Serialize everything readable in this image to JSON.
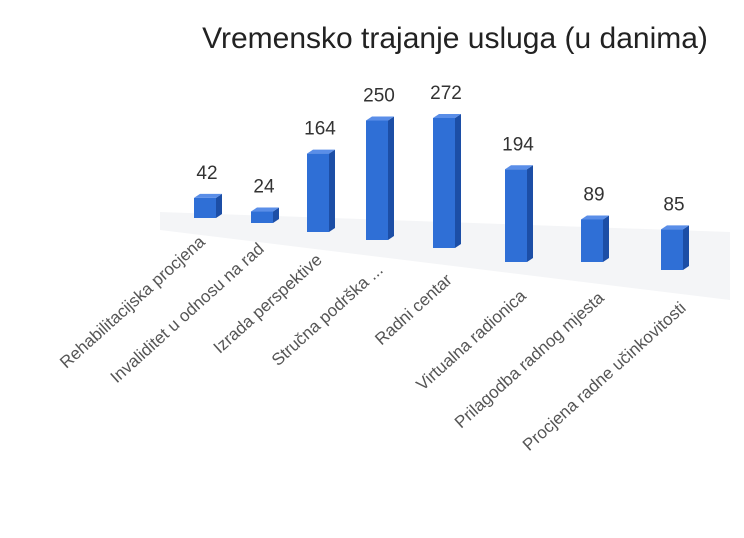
{
  "chart_data": {
    "type": "bar3d",
    "title": "Vremensko trajanje usluga (u danima)",
    "categories": [
      "Rehabilitacijska procjena",
      "Invaliditet u odnosu na rad",
      "Izrada perspektive",
      "Stručna podrška ...",
      "Radni centar",
      "Virtualna radionica",
      "Prilagodba radnog mjesta",
      "Procjena radne učinkovitosti"
    ],
    "values": [
      42,
      24,
      164,
      250,
      272,
      194,
      89,
      85
    ],
    "color": "#2f6fd6"
  }
}
